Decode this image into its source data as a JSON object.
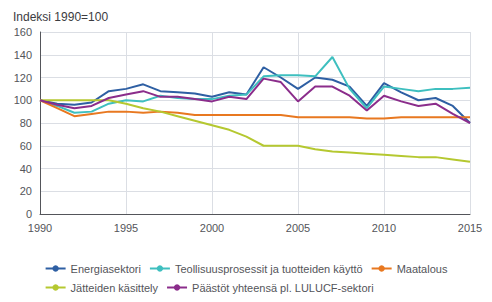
{
  "chart_data": {
    "type": "line",
    "title": "Indeksi 1990=100",
    "x": [
      1990,
      1991,
      1992,
      1993,
      1994,
      1995,
      1996,
      1997,
      1998,
      1999,
      2000,
      2001,
      2002,
      2003,
      2004,
      2005,
      2006,
      2007,
      2008,
      2009,
      2010,
      2011,
      2012,
      2013,
      2014,
      2015
    ],
    "series": [
      {
        "name": "Energiasektori",
        "color": "#2e5fa3",
        "values": [
          100,
          97,
          96,
          98,
          108,
          110,
          114,
          108,
          107,
          106,
          103,
          107,
          105,
          129,
          120,
          110,
          120,
          118,
          112,
          95,
          115,
          107,
          100,
          102,
          95,
          80
        ]
      },
      {
        "name": "Teollisuusprosessit ja tuotteiden käyttö",
        "color": "#3ebfbf",
        "values": [
          100,
          95,
          89,
          90,
          97,
          100,
          99,
          104,
          102,
          101,
          101,
          104,
          105,
          121,
          122,
          122,
          121,
          138,
          110,
          93,
          112,
          110,
          108,
          110,
          110,
          111
        ]
      },
      {
        "name": "Maatalous",
        "color": "#e87820",
        "values": [
          100,
          93,
          86,
          88,
          90,
          90,
          89,
          90,
          89,
          87,
          87,
          87,
          87,
          87,
          87,
          85,
          85,
          85,
          85,
          84,
          84,
          85,
          85,
          85,
          85,
          85
        ]
      },
      {
        "name": "Jätteiden käsittely",
        "color": "#b5c830",
        "values": [
          100,
          100,
          100,
          100,
          100,
          97,
          93,
          90,
          86,
          82,
          78,
          74,
          68,
          60,
          60,
          60,
          57,
          55,
          54,
          53,
          52,
          51,
          50,
          50,
          48,
          46
        ]
      },
      {
        "name": "Päästöt yhteensä pl. LULUCF-sektori",
        "color": "#8b2d8b",
        "values": [
          100,
          96,
          93,
          95,
          102,
          105,
          108,
          103,
          103,
          101,
          99,
          103,
          101,
          119,
          116,
          99,
          112,
          112,
          104,
          91,
          104,
          99,
          95,
          97,
          88,
          80
        ]
      }
    ],
    "xlim": [
      1990,
      2015
    ],
    "xticks": [
      1990,
      1995,
      2000,
      2005,
      2010,
      2015
    ],
    "ylim": [
      0,
      160
    ],
    "yticks": [
      0,
      20,
      40,
      60,
      80,
      100,
      120,
      140,
      160
    ],
    "grid": true,
    "legend": "bottom"
  }
}
